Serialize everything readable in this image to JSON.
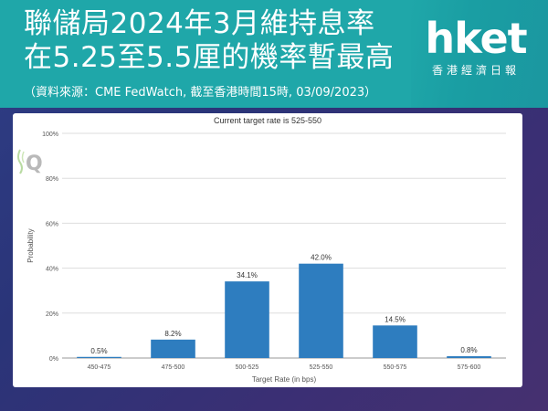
{
  "header": {
    "headline_line1": "聯儲局2024年3月維持息率",
    "headline_line2": "在5.25至5.5厘的機率暫最高",
    "source": "（資料來源：CME FedWatch, 截至香港時間15時, 03/09/2023）"
  },
  "logo": {
    "mark": "hket",
    "sub": "香港經濟日報"
  },
  "colors": {
    "header_bg": "#1fa7a9",
    "bar": "#2e7dbf"
  },
  "chart_data": {
    "type": "bar",
    "title": "Current target rate is 525-550",
    "xlabel": "Target Rate (in bps)",
    "ylabel": "Probability",
    "categories": [
      "450-475",
      "475-500",
      "500-525",
      "525-550",
      "550-575",
      "575-600"
    ],
    "values": [
      0.5,
      8.2,
      34.1,
      42.0,
      14.5,
      0.8
    ],
    "data_labels": [
      "0.5%",
      "8.2%",
      "34.1%",
      "42.0%",
      "14.5%",
      "0.8%"
    ],
    "y_ticks": [
      "0%",
      "20%",
      "40%",
      "60%",
      "80%",
      "100%"
    ],
    "ylim": [
      0,
      100
    ],
    "grid": true
  }
}
